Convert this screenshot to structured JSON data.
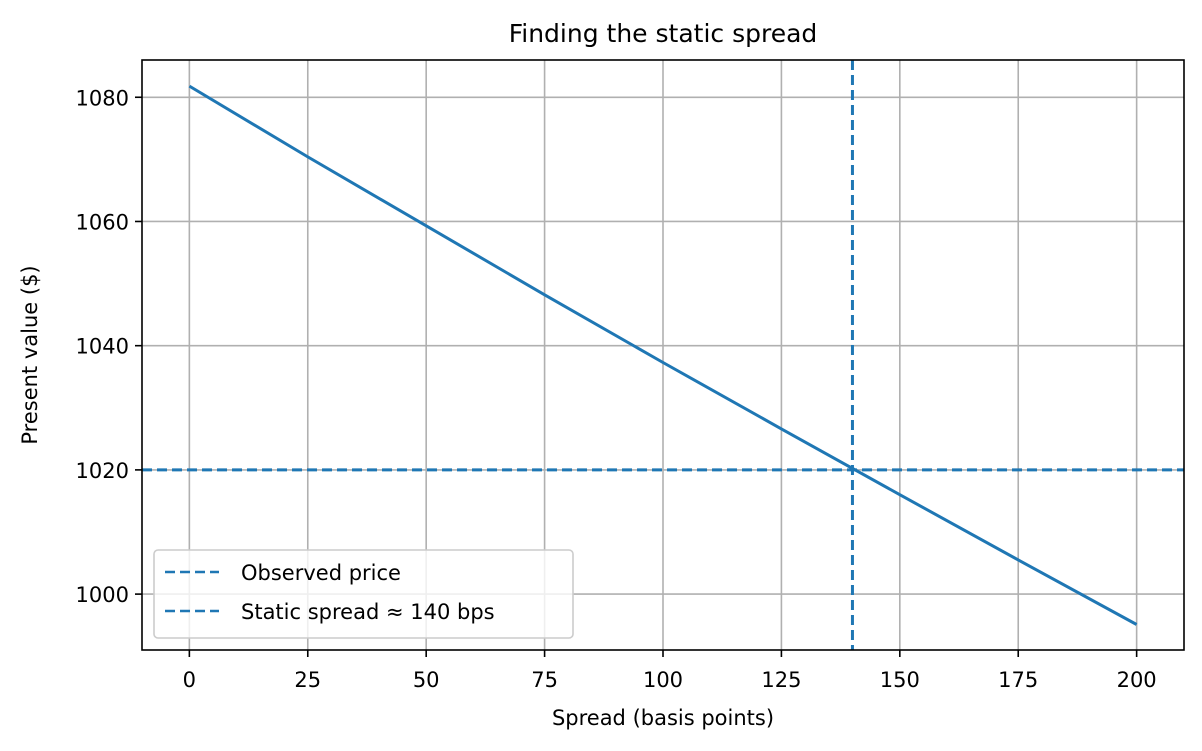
{
  "chart_data": {
    "type": "line",
    "title": "Finding the static spread",
    "xlabel": "Spread (basis points)",
    "ylabel": "Present value ($)",
    "xlim": [
      -10,
      210
    ],
    "ylim": [
      991,
      1086
    ],
    "xticks": [
      0,
      25,
      50,
      75,
      100,
      125,
      150,
      175,
      200
    ],
    "yticks": [
      1000,
      1020,
      1040,
      1060,
      1080
    ],
    "grid": true,
    "legend_position": "lower-left",
    "series": [
      {
        "kind": "curve",
        "color": "#1f77b4",
        "x": [
          0,
          25,
          50,
          75,
          100,
          125,
          150,
          175,
          200
        ],
        "y": [
          1081.8,
          1070.4,
          1059.3,
          1048.2,
          1037.3,
          1026.6,
          1016.0,
          1005.5,
          995.1
        ]
      },
      {
        "kind": "hline",
        "name": "Observed price",
        "y": 1020,
        "color": "#1f77b4",
        "dashed": true
      },
      {
        "kind": "vline",
        "name": "Static spread ≈ 140 bps",
        "x": 140,
        "color": "#1f77b4",
        "dashed": true
      }
    ]
  }
}
